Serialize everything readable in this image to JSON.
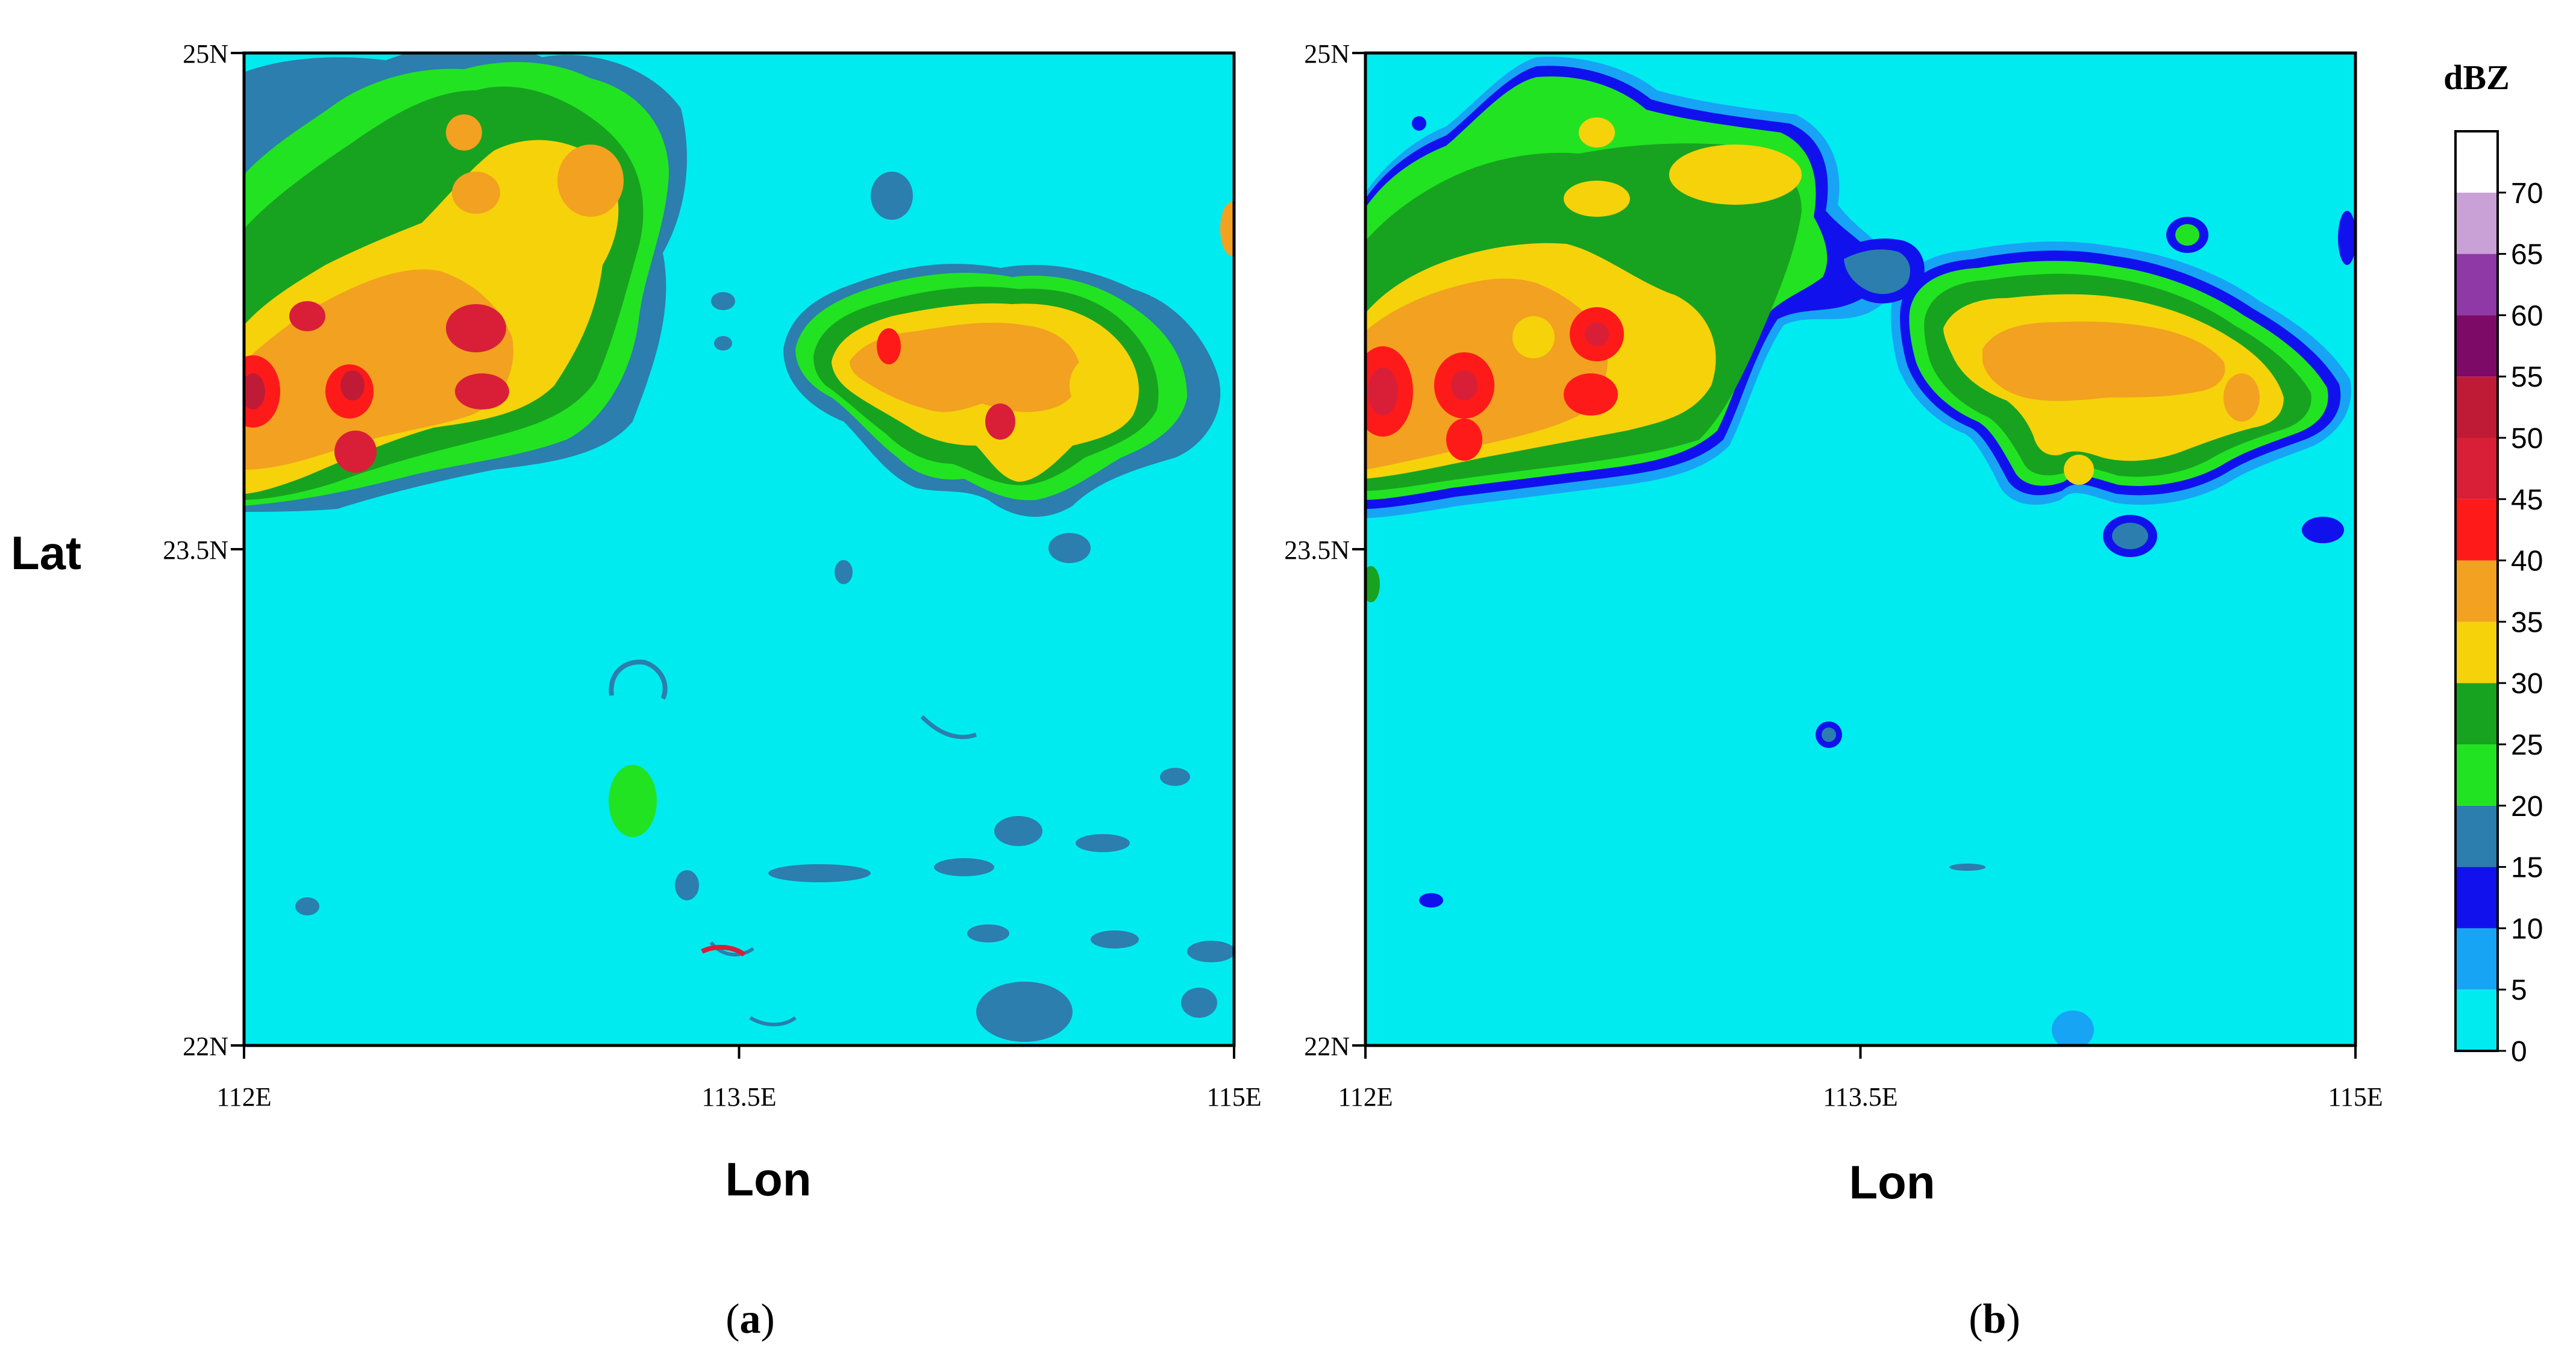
{
  "chart_data": [
    {
      "type": "heatmap",
      "panel_label": "a",
      "xlabel": "Lon",
      "ylabel": "Lat",
      "xlim": [
        112,
        115
      ],
      "ylim": [
        22,
        25
      ],
      "x_ticks": [
        {
          "value": 112,
          "label": "112E"
        },
        {
          "value": 113.5,
          "label": "113.5E"
        },
        {
          "value": 115,
          "label": "115E"
        }
      ],
      "y_ticks": [
        {
          "value": 22,
          "label": "22N"
        },
        {
          "value": 23.5,
          "label": "23.5N"
        },
        {
          "value": 25,
          "label": "25N"
        }
      ],
      "cells": [
        {
          "lon": 112.05,
          "lat": 24.35,
          "dbz": 30
        },
        {
          "lon": 112.25,
          "lat": 24.35,
          "dbz": 35
        },
        {
          "lon": 112.35,
          "lat": 24.3,
          "dbz": 45
        },
        {
          "lon": 112.15,
          "lat": 23.95,
          "dbz": 50
        },
        {
          "lon": 112.0,
          "lat": 23.95,
          "dbz": 45
        },
        {
          "lon": 112.3,
          "lat": 23.8,
          "dbz": 45
        },
        {
          "lon": 112.6,
          "lat": 24.15,
          "dbz": 45
        },
        {
          "lon": 112.7,
          "lat": 23.95,
          "dbz": 45
        },
        {
          "lon": 112.5,
          "lat": 24.6,
          "dbz": 35
        },
        {
          "lon": 112.7,
          "lat": 24.7,
          "dbz": 35
        },
        {
          "lon": 113.0,
          "lat": 24.65,
          "dbz": 35
        },
        {
          "lon": 112.95,
          "lat": 24.3,
          "dbz": 30
        },
        {
          "lon": 113.25,
          "lat": 24.55,
          "dbz": 30
        },
        {
          "lon": 112.7,
          "lat": 24.5,
          "dbz": 25
        },
        {
          "lon": 114.1,
          "lat": 24.1,
          "dbz": 30
        },
        {
          "lon": 114.45,
          "lat": 24.05,
          "dbz": 40
        },
        {
          "lon": 114.3,
          "lat": 23.85,
          "dbz": 35
        },
        {
          "lon": 113.95,
          "lat": 24.1,
          "dbz": 40
        },
        {
          "lon": 114.6,
          "lat": 23.85,
          "dbz": 40
        },
        {
          "lon": 114.9,
          "lat": 23.95,
          "dbz": 30
        },
        {
          "lon": 114.3,
          "lat": 23.75,
          "dbz": 45
        },
        {
          "lon": 113.3,
          "lat": 22.75,
          "dbz": 25
        },
        {
          "lon": 113.9,
          "lat": 22.5,
          "dbz": 15
        },
        {
          "lon": 114.4,
          "lat": 22.1,
          "dbz": 15
        },
        {
          "lon": 114.35,
          "lat": 22.65,
          "dbz": 15
        },
        {
          "lon": 114.9,
          "lat": 22.25,
          "dbz": 15
        },
        {
          "lon": 113.75,
          "lat": 23.45,
          "dbz": 15
        },
        {
          "lon": 112.2,
          "lat": 22.45,
          "dbz": 15
        },
        {
          "lon": 113.45,
          "lat": 22.3,
          "dbz": 45
        }
      ]
    },
    {
      "type": "heatmap",
      "panel_label": "b",
      "xlabel": "Lon",
      "ylabel": "",
      "xlim": [
        112,
        115
      ],
      "ylim": [
        22,
        25
      ],
      "x_ticks": [
        {
          "value": 112,
          "label": "112E"
        },
        {
          "value": 113.5,
          "label": "113.5E"
        },
        {
          "value": 115,
          "label": "115E"
        }
      ],
      "y_ticks": [
        {
          "value": 22,
          "label": "22N"
        },
        {
          "value": 23.5,
          "label": "23.5N"
        },
        {
          "value": 25,
          "label": "25N"
        }
      ],
      "cells": [
        {
          "lon": 112.05,
          "lat": 24.0,
          "dbz": 50
        },
        {
          "lon": 112.35,
          "lat": 23.95,
          "dbz": 45
        },
        {
          "lon": 112.6,
          "lat": 24.15,
          "dbz": 45
        },
        {
          "lon": 112.65,
          "lat": 23.95,
          "dbz": 45
        },
        {
          "lon": 112.35,
          "lat": 24.15,
          "dbz": 40
        },
        {
          "lon": 112.3,
          "lat": 23.85,
          "dbz": 35
        },
        {
          "lon": 112.8,
          "lat": 24.1,
          "dbz": 35
        },
        {
          "lon": 112.7,
          "lat": 24.6,
          "dbz": 30
        },
        {
          "lon": 113.15,
          "lat": 24.7,
          "dbz": 30
        },
        {
          "lon": 112.85,
          "lat": 24.7,
          "dbz": 25
        },
        {
          "lon": 112.7,
          "lat": 24.8,
          "dbz": 25
        },
        {
          "lon": 114.15,
          "lat": 24.1,
          "dbz": 35
        },
        {
          "lon": 114.35,
          "lat": 24.05,
          "dbz": 40
        },
        {
          "lon": 114.55,
          "lat": 24.05,
          "dbz": 35
        },
        {
          "lon": 114.5,
          "lat": 23.85,
          "dbz": 30
        },
        {
          "lon": 113.95,
          "lat": 23.8,
          "dbz": 30
        },
        {
          "lon": 114.0,
          "lat": 24.5,
          "dbz": 25
        },
        {
          "lon": 113.4,
          "lat": 22.9,
          "dbz": 15
        },
        {
          "lon": 114.15,
          "lat": 22.05,
          "dbz": 10
        },
        {
          "lon": 113.2,
          "lat": 24.3,
          "dbz": 15
        },
        {
          "lon": 113.55,
          "lat": 24.15,
          "dbz": 15
        },
        {
          "lon": 114.9,
          "lat": 23.55,
          "dbz": 15
        },
        {
          "lon": 113.85,
          "lat": 23.55,
          "dbz": 15
        },
        {
          "lon": 112.2,
          "lat": 22.45,
          "dbz": 15
        }
      ]
    }
  ],
  "colorbar": {
    "title": "dBZ",
    "ticks": [
      "0",
      "5",
      "10",
      "15",
      "20",
      "25",
      "30",
      "35",
      "40",
      "45",
      "50",
      "55",
      "60",
      "65",
      "70"
    ],
    "colors": [
      "#00ebf0",
      "#18a4f5",
      "#1111ee",
      "#2b7ead",
      "#22e322",
      "#17a31f",
      "#f6d20b",
      "#f2a120",
      "#ff1a1a",
      "#d81f37",
      "#c01b36",
      "#7e0a68",
      "#8e39a6",
      "#c9a1d6",
      "#ffffff"
    ]
  },
  "captions": {
    "a": "a",
    "b": "b"
  }
}
